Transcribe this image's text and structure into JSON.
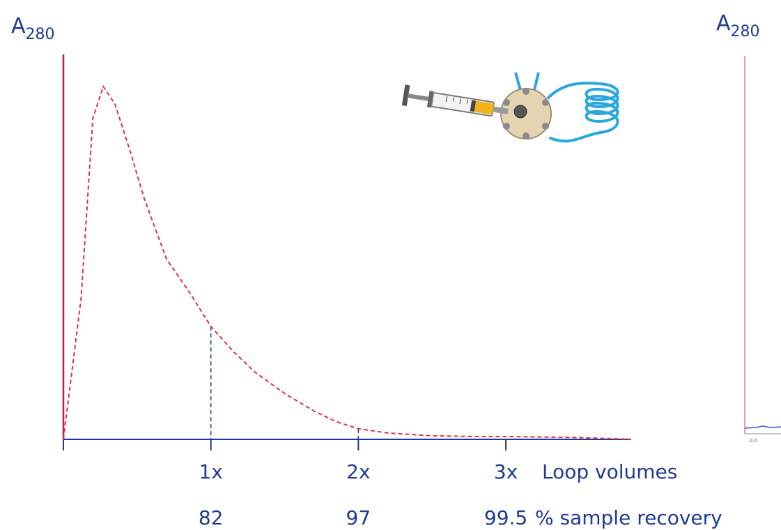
{
  "chart_data": {
    "type": "line",
    "ylabel": {
      "main": "A",
      "subscript": "280"
    },
    "x_ticks": [
      {
        "x": 1,
        "label": "1x",
        "recovery": "82"
      },
      {
        "x": 2,
        "label": "2x",
        "recovery": "97"
      },
      {
        "x": 3,
        "label": "3x",
        "recovery": "99.5"
      }
    ],
    "x_axis_label": "Loop volumes",
    "recovery_label": "% sample recovery",
    "xlim": [
      0,
      3.85
    ],
    "ylim": [
      0,
      1
    ],
    "series": [
      {
        "style": "dashed",
        "color": "#e0304e",
        "x": [
          0.0,
          0.12,
          0.2,
          0.27,
          0.35,
          0.45,
          0.55,
          0.7,
          0.85,
          1.0,
          1.15,
          1.3,
          1.5,
          1.7,
          1.85,
          2.0,
          2.2,
          2.5,
          2.8,
          3.0,
          3.2,
          3.5,
          3.85
        ],
        "y": [
          0.0,
          0.4,
          0.91,
          1.0,
          0.95,
          0.82,
          0.68,
          0.51,
          0.42,
          0.32,
          0.25,
          0.19,
          0.13,
          0.08,
          0.05,
          0.03,
          0.018,
          0.01,
          0.008,
          0.008,
          0.007,
          0.005,
          0.0
        ]
      }
    ],
    "colors": {
      "axis": "#1f3a93",
      "y_axis": "#c0185a",
      "curve": "#e0304e",
      "text": "#1f3a93"
    }
  },
  "side_panel": {
    "ylabel": {
      "main": "A",
      "subscript": "280"
    },
    "tick_label": "0.0"
  },
  "illustration": {
    "icon": "syringe-injection-valve-loop-icon"
  }
}
